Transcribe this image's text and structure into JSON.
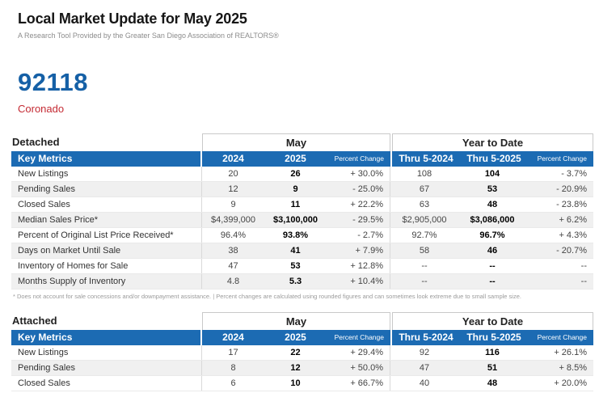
{
  "header": {
    "title": "Local Market Update for May 2025",
    "subtitle": "A Research Tool Provided by the Greater San Diego Association of REALTORS®"
  },
  "location": {
    "zip": "92118",
    "city": "Coronado"
  },
  "colors": {
    "header_bar_blue": "#1c6bb3",
    "zip_blue": "#1560a6",
    "city_red": "#c42a33",
    "row_stripe": "#f0f0f0"
  },
  "columns": {
    "key_metrics": "Key Metrics",
    "may_group": "May",
    "ytd_group": "Year to Date",
    "may": [
      "2024",
      "2025",
      "Percent Change"
    ],
    "ytd": [
      "Thru 5-2024",
      "Thru 5-2025",
      "Percent Change"
    ]
  },
  "tables": [
    {
      "section": "Detached",
      "rows": [
        {
          "label": "New Listings",
          "values": [
            "20",
            "26",
            "+ 30.0%",
            "108",
            "104",
            "- 3.7%"
          ]
        },
        {
          "label": "Pending Sales",
          "values": [
            "12",
            "9",
            "- 25.0%",
            "67",
            "53",
            "- 20.9%"
          ]
        },
        {
          "label": "Closed Sales",
          "values": [
            "9",
            "11",
            "+ 22.2%",
            "63",
            "48",
            "- 23.8%"
          ]
        },
        {
          "label": "Median Sales Price*",
          "values": [
            "$4,399,000",
            "$3,100,000",
            "- 29.5%",
            "$2,905,000",
            "$3,086,000",
            "+ 6.2%"
          ]
        },
        {
          "label": "Percent of Original List Price Received*",
          "values": [
            "96.4%",
            "93.8%",
            "- 2.7%",
            "92.7%",
            "96.7%",
            "+ 4.3%"
          ]
        },
        {
          "label": "Days on Market Until Sale",
          "values": [
            "38",
            "41",
            "+ 7.9%",
            "58",
            "46",
            "- 20.7%"
          ]
        },
        {
          "label": "Inventory of Homes for Sale",
          "values": [
            "47",
            "53",
            "+ 12.8%",
            "--",
            "--",
            "--"
          ]
        },
        {
          "label": "Months Supply of Inventory",
          "values": [
            "4.8",
            "5.3",
            "+ 10.4%",
            "--",
            "--",
            "--"
          ]
        }
      ]
    },
    {
      "section": "Attached",
      "rows": [
        {
          "label": "New Listings",
          "values": [
            "17",
            "22",
            "+ 29.4%",
            "92",
            "116",
            "+ 26.1%"
          ]
        },
        {
          "label": "Pending Sales",
          "values": [
            "8",
            "12",
            "+ 50.0%",
            "47",
            "51",
            "+ 8.5%"
          ]
        },
        {
          "label": "Closed Sales",
          "values": [
            "6",
            "10",
            "+ 66.7%",
            "40",
            "48",
            "+ 20.0%"
          ]
        }
      ]
    }
  ],
  "footnote": "* Does not account for sale concessions and/or downpayment assistance.  |  Percent changes are calculated using rounded figures and can sometimes look extreme due to small sample size."
}
